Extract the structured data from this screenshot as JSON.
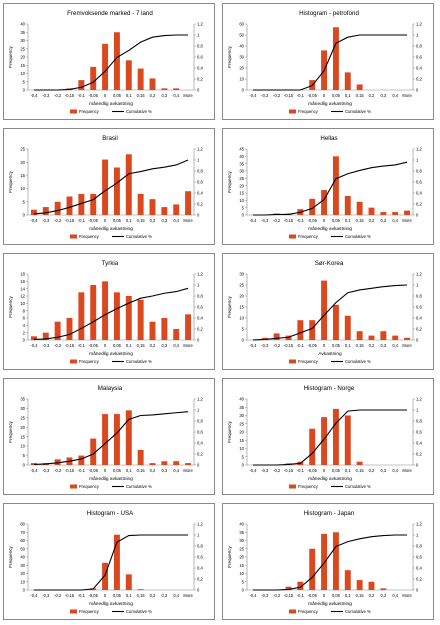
{
  "figure": {
    "y_left_label": "Frequency",
    "x_categories": [
      "-0,4",
      "-0,3",
      "-0,2",
      "-0,15",
      "-0,1",
      "-0,05",
      "0",
      "0,05",
      "0,1",
      "0,15",
      "0,2",
      "0,3",
      "0,4",
      "More"
    ],
    "legend": {
      "frequency": "Frequency",
      "cumulative": "Cumulative %"
    },
    "colors": {
      "bars": "#d9481f",
      "line": "#000000",
      "border": "#8a8a8a"
    }
  },
  "chart_data": [
    {
      "type": "bar",
      "title": "Fremvoksende marked - 7 land",
      "xlabel": "månedlig avkastning",
      "ylabel": "Frequency",
      "categories": [
        "-0,4",
        "-0,3",
        "-0,2",
        "-0,15",
        "-0,1",
        "-0,05",
        "0",
        "0,05",
        "0,1",
        "0,15",
        "0,2",
        "0,3",
        "0,4",
        "More"
      ],
      "ylim": [
        0,
        40
      ],
      "yticks": [
        0,
        5,
        10,
        15,
        20,
        25,
        30,
        35,
        40
      ],
      "y2lim": [
        0,
        1.2
      ],
      "y2ticks": [
        "0",
        "0,2",
        "0,4",
        "0,6",
        "0,8",
        "1",
        "1,2"
      ],
      "series": [
        {
          "name": "Frequency",
          "values": [
            0,
            0,
            0,
            1,
            6,
            14,
            28,
            35,
            18,
            13,
            7,
            1,
            1,
            0
          ]
        },
        {
          "name": "Cumulative %",
          "values": [
            0,
            0,
            0,
            0.01,
            0.05,
            0.14,
            0.34,
            0.59,
            0.72,
            0.87,
            0.96,
            0.99,
            1.0,
            1.0
          ]
        }
      ],
      "legend": "bottom"
    },
    {
      "type": "bar",
      "title": "Histogram - petrofond",
      "xlabel": "månedlig avkastning",
      "ylabel": "Frequency",
      "categories": [
        "-0,4",
        "-0,3",
        "-0,2",
        "-0,15",
        "-0,1",
        "-0,05",
        "0",
        "0,05",
        "0,1",
        "0,15",
        "0,2",
        "0,3",
        "0,4",
        "More"
      ],
      "ylim": [
        0,
        60
      ],
      "yticks": [
        0,
        10,
        20,
        30,
        40,
        50,
        60
      ],
      "y2lim": [
        0,
        1.2
      ],
      "y2ticks": [
        "0",
        "0,2",
        "0,4",
        "0,6",
        "0,8",
        "1",
        "1,2"
      ],
      "series": [
        {
          "name": "Frequency",
          "values": [
            0,
            0,
            0,
            0,
            0,
            9,
            36,
            57,
            16,
            5,
            0,
            0,
            0,
            0
          ]
        },
        {
          "name": "Cumulative %",
          "values": [
            0,
            0,
            0,
            0,
            0,
            0.08,
            0.35,
            0.85,
            0.96,
            1.0,
            1.0,
            1.0,
            1.0,
            1.0
          ]
        }
      ],
      "legend": "bottom"
    },
    {
      "type": "bar",
      "title": "Brasil",
      "xlabel": "månedlig avkastning",
      "ylabel": "Frequency",
      "categories": [
        "-0,4",
        "-0,3",
        "-0,2",
        "-0,15",
        "-0,1",
        "-0,05",
        "0",
        "0,05",
        "0,1",
        "0,15",
        "0,2",
        "0,3",
        "0,4",
        "More"
      ],
      "ylim": [
        0,
        25
      ],
      "yticks": [
        0,
        5,
        10,
        15,
        20,
        25
      ],
      "y2lim": [
        0,
        1.2
      ],
      "y2ticks": [
        "0",
        "0,2",
        "0,4",
        "0,6",
        "0,8",
        "1",
        "1,2"
      ],
      "series": [
        {
          "name": "Frequency",
          "values": [
            2,
            3,
            5,
            7,
            8,
            8,
            21,
            18,
            23,
            8,
            6,
            3,
            4,
            9
          ]
        },
        {
          "name": "Cumulative %",
          "values": [
            0.02,
            0.04,
            0.08,
            0.14,
            0.21,
            0.28,
            0.44,
            0.58,
            0.75,
            0.79,
            0.84,
            0.87,
            0.91,
            1.0
          ]
        }
      ],
      "legend": "bottom"
    },
    {
      "type": "bar",
      "title": "Hellas",
      "xlabel": "månedlig avkastning",
      "ylabel": "Frequency",
      "categories": [
        "-0,4",
        "-0,3",
        "-0,2",
        "-0,15",
        "-0,1",
        "-0,05",
        "0",
        "0,05",
        "0,1",
        "0,15",
        "0,2",
        "0,3",
        "0,4",
        "More"
      ],
      "ylim": [
        0,
        45
      ],
      "yticks": [
        0,
        5,
        10,
        15,
        20,
        25,
        30,
        35,
        40,
        45
      ],
      "y2lim": [
        0,
        1.2
      ],
      "y2ticks": [
        "0",
        "0,2",
        "0,4",
        "0,6",
        "0,8",
        "1",
        "1,2"
      ],
      "series": [
        {
          "name": "Frequency",
          "values": [
            0,
            0,
            1,
            1,
            4,
            11,
            17,
            40,
            13,
            9,
            5,
            2,
            2,
            3
          ]
        },
        {
          "name": "Cumulative %",
          "values": [
            0,
            0,
            0.01,
            0.01,
            0.05,
            0.12,
            0.28,
            0.66,
            0.75,
            0.81,
            0.86,
            0.89,
            0.91,
            0.96
          ]
        }
      ],
      "legend": "bottom"
    },
    {
      "type": "bar",
      "title": "Tyrkia",
      "xlabel": "månedlig avkastning",
      "ylabel": "Frequency",
      "categories": [
        "-0,4",
        "-0,3",
        "-0,2",
        "-0,15",
        "-0,1",
        "-0,05",
        "0",
        "0,05",
        "0,1",
        "0,15",
        "0,2",
        "0,3",
        "0,4",
        "More"
      ],
      "ylim": [
        0,
        18
      ],
      "yticks": [
        0,
        2,
        4,
        6,
        8,
        10,
        12,
        14,
        16,
        18
      ],
      "y2lim": [
        0,
        1.2
      ],
      "y2ticks": [
        "0",
        "0,2",
        "0,4",
        "0,6",
        "0,8",
        "1",
        "1,2"
      ],
      "series": [
        {
          "name": "Frequency",
          "values": [
            1,
            2,
            5,
            6,
            13,
            15,
            16,
            13,
            12,
            11,
            5,
            6,
            3,
            7
          ]
        },
        {
          "name": "Cumulative %",
          "values": [
            0.01,
            0.02,
            0.05,
            0.1,
            0.21,
            0.33,
            0.46,
            0.57,
            0.67,
            0.76,
            0.8,
            0.85,
            0.88,
            0.94
          ]
        }
      ],
      "legend": "bottom"
    },
    {
      "type": "bar",
      "title": "Sør-Korea",
      "xlabel": "Avkastning",
      "ylabel": "Frequency",
      "categories": [
        "-0,4",
        "-0,3",
        "-0,2",
        "-0,15",
        "-0,1",
        "-0,05",
        "0",
        "0,05",
        "0,1",
        "0,15",
        "0,2",
        "0,3",
        "0,4",
        "More"
      ],
      "ylim": [
        0,
        30
      ],
      "yticks": [
        0,
        5,
        10,
        15,
        20,
        25,
        30
      ],
      "y2lim": [
        0,
        1.2
      ],
      "y2ticks": [
        "0",
        "0,2",
        "0,4",
        "0,6",
        "0,8",
        "1",
        "1,2"
      ],
      "series": [
        {
          "name": "Frequency",
          "values": [
            0,
            1,
            3,
            2,
            9,
            9,
            27,
            16,
            11,
            4,
            2,
            4,
            2,
            1
          ]
        },
        {
          "name": "Cumulative %",
          "values": [
            0,
            0.01,
            0.03,
            0.05,
            0.13,
            0.21,
            0.45,
            0.68,
            0.86,
            0.91,
            0.94,
            0.97,
            0.99,
            1.0
          ]
        }
      ],
      "legend": "bottom"
    },
    {
      "type": "bar",
      "title": "Malaysia",
      "xlabel": "månedlig avkastning",
      "ylabel": "Frequency",
      "categories": [
        "-0,4",
        "-0,3",
        "-0,2",
        "-0,15",
        "-0,1",
        "-0,05",
        "0",
        "0,05",
        "0,1",
        "0,15",
        "0,2",
        "0,3",
        "0,4",
        "More"
      ],
      "ylim": [
        0,
        35
      ],
      "yticks": [
        0,
        5,
        10,
        15,
        20,
        25,
        30,
        35
      ],
      "y2lim": [
        0,
        1.2
      ],
      "y2ticks": [
        "0",
        "0,2",
        "0,4",
        "0,6",
        "0,8",
        "1",
        "1,2"
      ],
      "series": [
        {
          "name": "Frequency",
          "values": [
            1,
            1,
            3,
            4,
            5,
            14,
            27,
            27,
            29,
            8,
            1,
            2,
            2,
            1
          ]
        },
        {
          "name": "Cumulative %",
          "values": [
            0.01,
            0.02,
            0.04,
            0.07,
            0.11,
            0.2,
            0.39,
            0.58,
            0.83,
            0.9,
            0.91,
            0.93,
            0.95,
            0.97
          ]
        }
      ],
      "legend": "bottom"
    },
    {
      "type": "bar",
      "title": "Histogram - Norge",
      "xlabel": "månedlig avkastning",
      "ylabel": "Frequency",
      "categories": [
        "-0,4",
        "-0,3",
        "-0,2",
        "-0,15",
        "-0,1",
        "-0,05",
        "0",
        "0,05",
        "0,1",
        "0,15",
        "0,2",
        "0,3",
        "0,4",
        "More"
      ],
      "ylim": [
        0,
        40
      ],
      "yticks": [
        0,
        5,
        10,
        15,
        20,
        25,
        30,
        35,
        40
      ],
      "y2lim": [
        0,
        1.2
      ],
      "y2ticks": [
        "0",
        "0,2",
        "0,4",
        "0,6",
        "0,8",
        "1",
        "1,2"
      ],
      "series": [
        {
          "name": "Frequency",
          "values": [
            0,
            0,
            0,
            1,
            2,
            22,
            29,
            34,
            30,
            2,
            0,
            0,
            0,
            0
          ]
        },
        {
          "name": "Cumulative %",
          "values": [
            0,
            0,
            0,
            0.01,
            0.03,
            0.21,
            0.47,
            0.76,
            0.98,
            1.0,
            1.0,
            1.0,
            1.0,
            1.0
          ]
        }
      ],
      "legend": "bottom"
    },
    {
      "type": "bar",
      "title": "Histogram - USA",
      "xlabel": "månedlig avkastning",
      "ylabel": "Frequency",
      "categories": [
        "-0,4",
        "-0,3",
        "-0,2",
        "-0,15",
        "-0,1",
        "-0,05",
        "0",
        "0,05",
        "0,1",
        "0,15",
        "0,2",
        "0,3",
        "0,4",
        "More"
      ],
      "ylim": [
        0,
        80
      ],
      "yticks": [
        0,
        10,
        20,
        30,
        40,
        50,
        60,
        70,
        80
      ],
      "y2lim": [
        0,
        1.2
      ],
      "y2ticks": [
        "0",
        "0,2",
        "0,4",
        "0,6",
        "0,8",
        "1",
        "1,2"
      ],
      "series": [
        {
          "name": "Frequency",
          "values": [
            0,
            0,
            0,
            0,
            0,
            2,
            33,
            67,
            19,
            1,
            0,
            0,
            0,
            0
          ]
        },
        {
          "name": "Cumulative %",
          "values": [
            0,
            0,
            0,
            0,
            0,
            0.02,
            0.27,
            0.87,
            0.99,
            1.0,
            1.0,
            1.0,
            1.0,
            1.0
          ]
        }
      ],
      "legend": "bottom"
    },
    {
      "type": "bar",
      "title": "Histogram - Japan",
      "xlabel": "månedlig avkastning",
      "ylabel": "Frequency",
      "categories": [
        "-0,4",
        "-0,3",
        "-0,2",
        "-0,15",
        "-0,1",
        "-0,05",
        "0",
        "0,05",
        "0,1",
        "0,15",
        "0,2",
        "0,3",
        "0,4",
        "More"
      ],
      "ylim": [
        0,
        40
      ],
      "yticks": [
        0,
        5,
        10,
        15,
        20,
        25,
        30,
        35,
        40
      ],
      "y2lim": [
        0,
        1.2
      ],
      "y2ticks": [
        "0",
        "0,2",
        "0,4",
        "0,6",
        "0,8",
        "1",
        "1,2"
      ],
      "series": [
        {
          "name": "Frequency",
          "values": [
            0,
            0,
            0,
            2,
            5,
            25,
            34,
            35,
            12,
            6,
            5,
            1,
            0,
            0
          ]
        },
        {
          "name": "Cumulative %",
          "values": [
            0,
            0,
            0,
            0.01,
            0.05,
            0.23,
            0.49,
            0.79,
            0.88,
            0.93,
            0.97,
            0.99,
            1.0,
            1.0
          ]
        }
      ],
      "legend": "bottom"
    }
  ]
}
